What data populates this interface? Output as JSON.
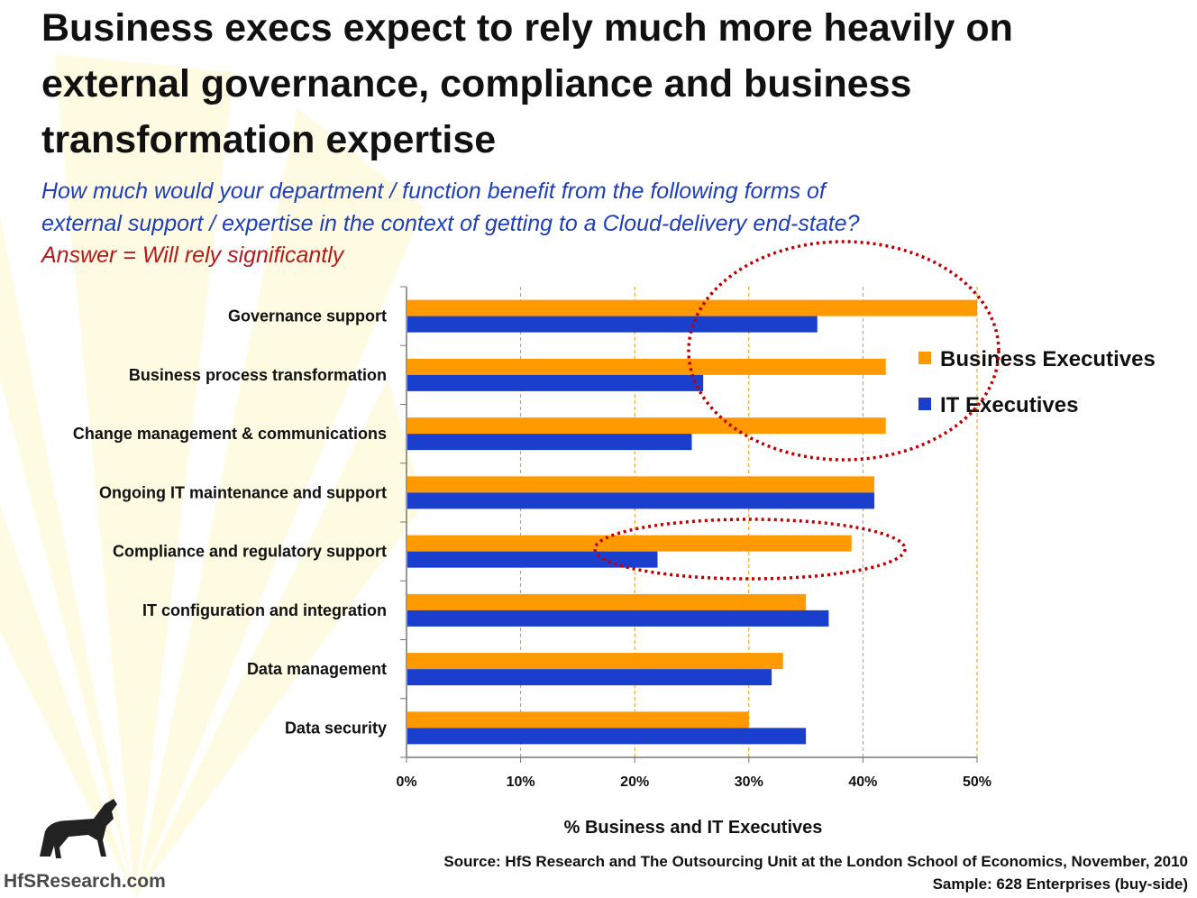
{
  "title": "Business execs expect to rely much more heavily on external governance, compliance and business transformation expertise",
  "question_line1": "How much would your department / function benefit from the following forms of",
  "question_line2": "external support / expertise in the context of getting to a Cloud-delivery end-state?",
  "answer": "Answer = Will rely significantly",
  "source": "Source:  HfS Research and  The Outsourcing Unit at the London School of Economics, November, 2010",
  "sample": "Sample:  628 Enterprises (buy-side)",
  "logo_text": "HfSResearch.com",
  "logo_icon": "horse-icon",
  "colors": {
    "business": "#ff9900",
    "it": "#1a3fcc",
    "annotation": "#c00000",
    "grid": "#e69a00"
  },
  "chart_data": {
    "type": "bar",
    "orientation": "horizontal",
    "categories": [
      "Governance support",
      "Business process transformation",
      "Change management & communications",
      "Ongoing IT maintenance and support",
      "Compliance and regulatory support",
      "IT configuration and integration",
      "Data management",
      "Data security"
    ],
    "series": [
      {
        "name": "Business Executives",
        "values": [
          50,
          42,
          42,
          41,
          39,
          35,
          33,
          30
        ]
      },
      {
        "name": "IT Executives",
        "values": [
          36,
          26,
          25,
          41,
          22,
          37,
          32,
          35
        ]
      }
    ],
    "xlabel": "% Business and IT Executives",
    "xlim": [
      0,
      50
    ],
    "xticks": [
      "0%",
      "10%",
      "20%",
      "30%",
      "40%",
      "50%"
    ],
    "grid": "vertical dashed",
    "legend_position": "right",
    "annotations": [
      "dotted ellipse highlighting top three Business Executives bars",
      "dotted ellipse highlighting Compliance and regulatory support"
    ]
  }
}
